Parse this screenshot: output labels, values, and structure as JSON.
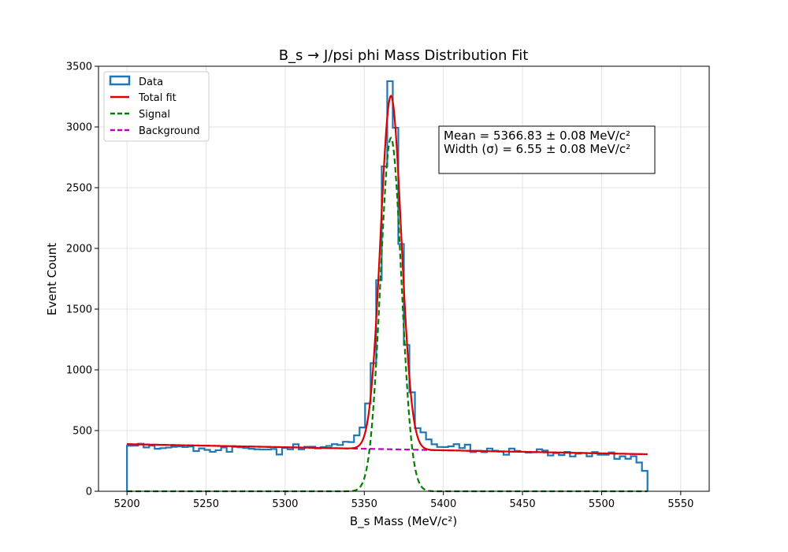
{
  "chart_data": {
    "type": "line",
    "title": "B_s → J/psi phi Mass Distribution Fit",
    "xlabel": "B_s Mass (MeV/c²)",
    "ylabel": "Event Count",
    "xlim": [
      5182,
      5568
    ],
    "ylim": [
      0,
      3500
    ],
    "xticks": [
      5200,
      5250,
      5300,
      5350,
      5400,
      5450,
      5500,
      5550
    ],
    "yticks": [
      0,
      500,
      1000,
      1500,
      2000,
      2500,
      3000,
      3500
    ],
    "grid": true,
    "legend_position": "top-left",
    "annotation": {
      "lines": [
        "Mean = 5366.83 ± 0.08 MeV/c²",
        "Width (σ) = 6.55 ± 0.08 MeV/c²"
      ]
    },
    "histogram": {
      "name": "Data",
      "color": "#1f77b4",
      "bin_edges_start": 5200,
      "bin_width": 3.5,
      "counts": [
        375,
        376,
        391,
        361,
        376,
        350,
        355,
        360,
        366,
        369,
        364,
        368,
        331,
        353,
        341,
        325,
        338,
        361,
        325,
        366,
        362,
        356,
        350,
        346,
        344,
        344,
        348,
        303,
        357,
        346,
        387,
        346,
        366,
        367,
        353,
        364,
        373,
        388,
        381,
        408,
        405,
        460,
        525,
        723,
        1055,
        1738,
        2675,
        3377,
        2993,
        2036,
        1205,
        815,
        520,
        485,
        427,
        387,
        365,
        364,
        370,
        388,
        356,
        384,
        323,
        334,
        322,
        352,
        334,
        326,
        301,
        352,
        332,
        325,
        319,
        321,
        346,
        335,
        295,
        315,
        298,
        324,
        287,
        310,
        315,
        288,
        323,
        301,
        301,
        320,
        267,
        288,
        268,
        289,
        237,
        168
      ]
    },
    "series": [
      {
        "name": "Total fit",
        "color": "#dd0000",
        "style": "solid"
      },
      {
        "name": "Signal",
        "color": "#008000",
        "style": "dashed"
      },
      {
        "name": "Background",
        "color": "#bf00bf",
        "style": "dashed"
      }
    ],
    "fit": {
      "mean": 5366.83,
      "sigma": 6.55,
      "signal_peak": 2910,
      "background_start": 388,
      "background_end": 305
    }
  }
}
